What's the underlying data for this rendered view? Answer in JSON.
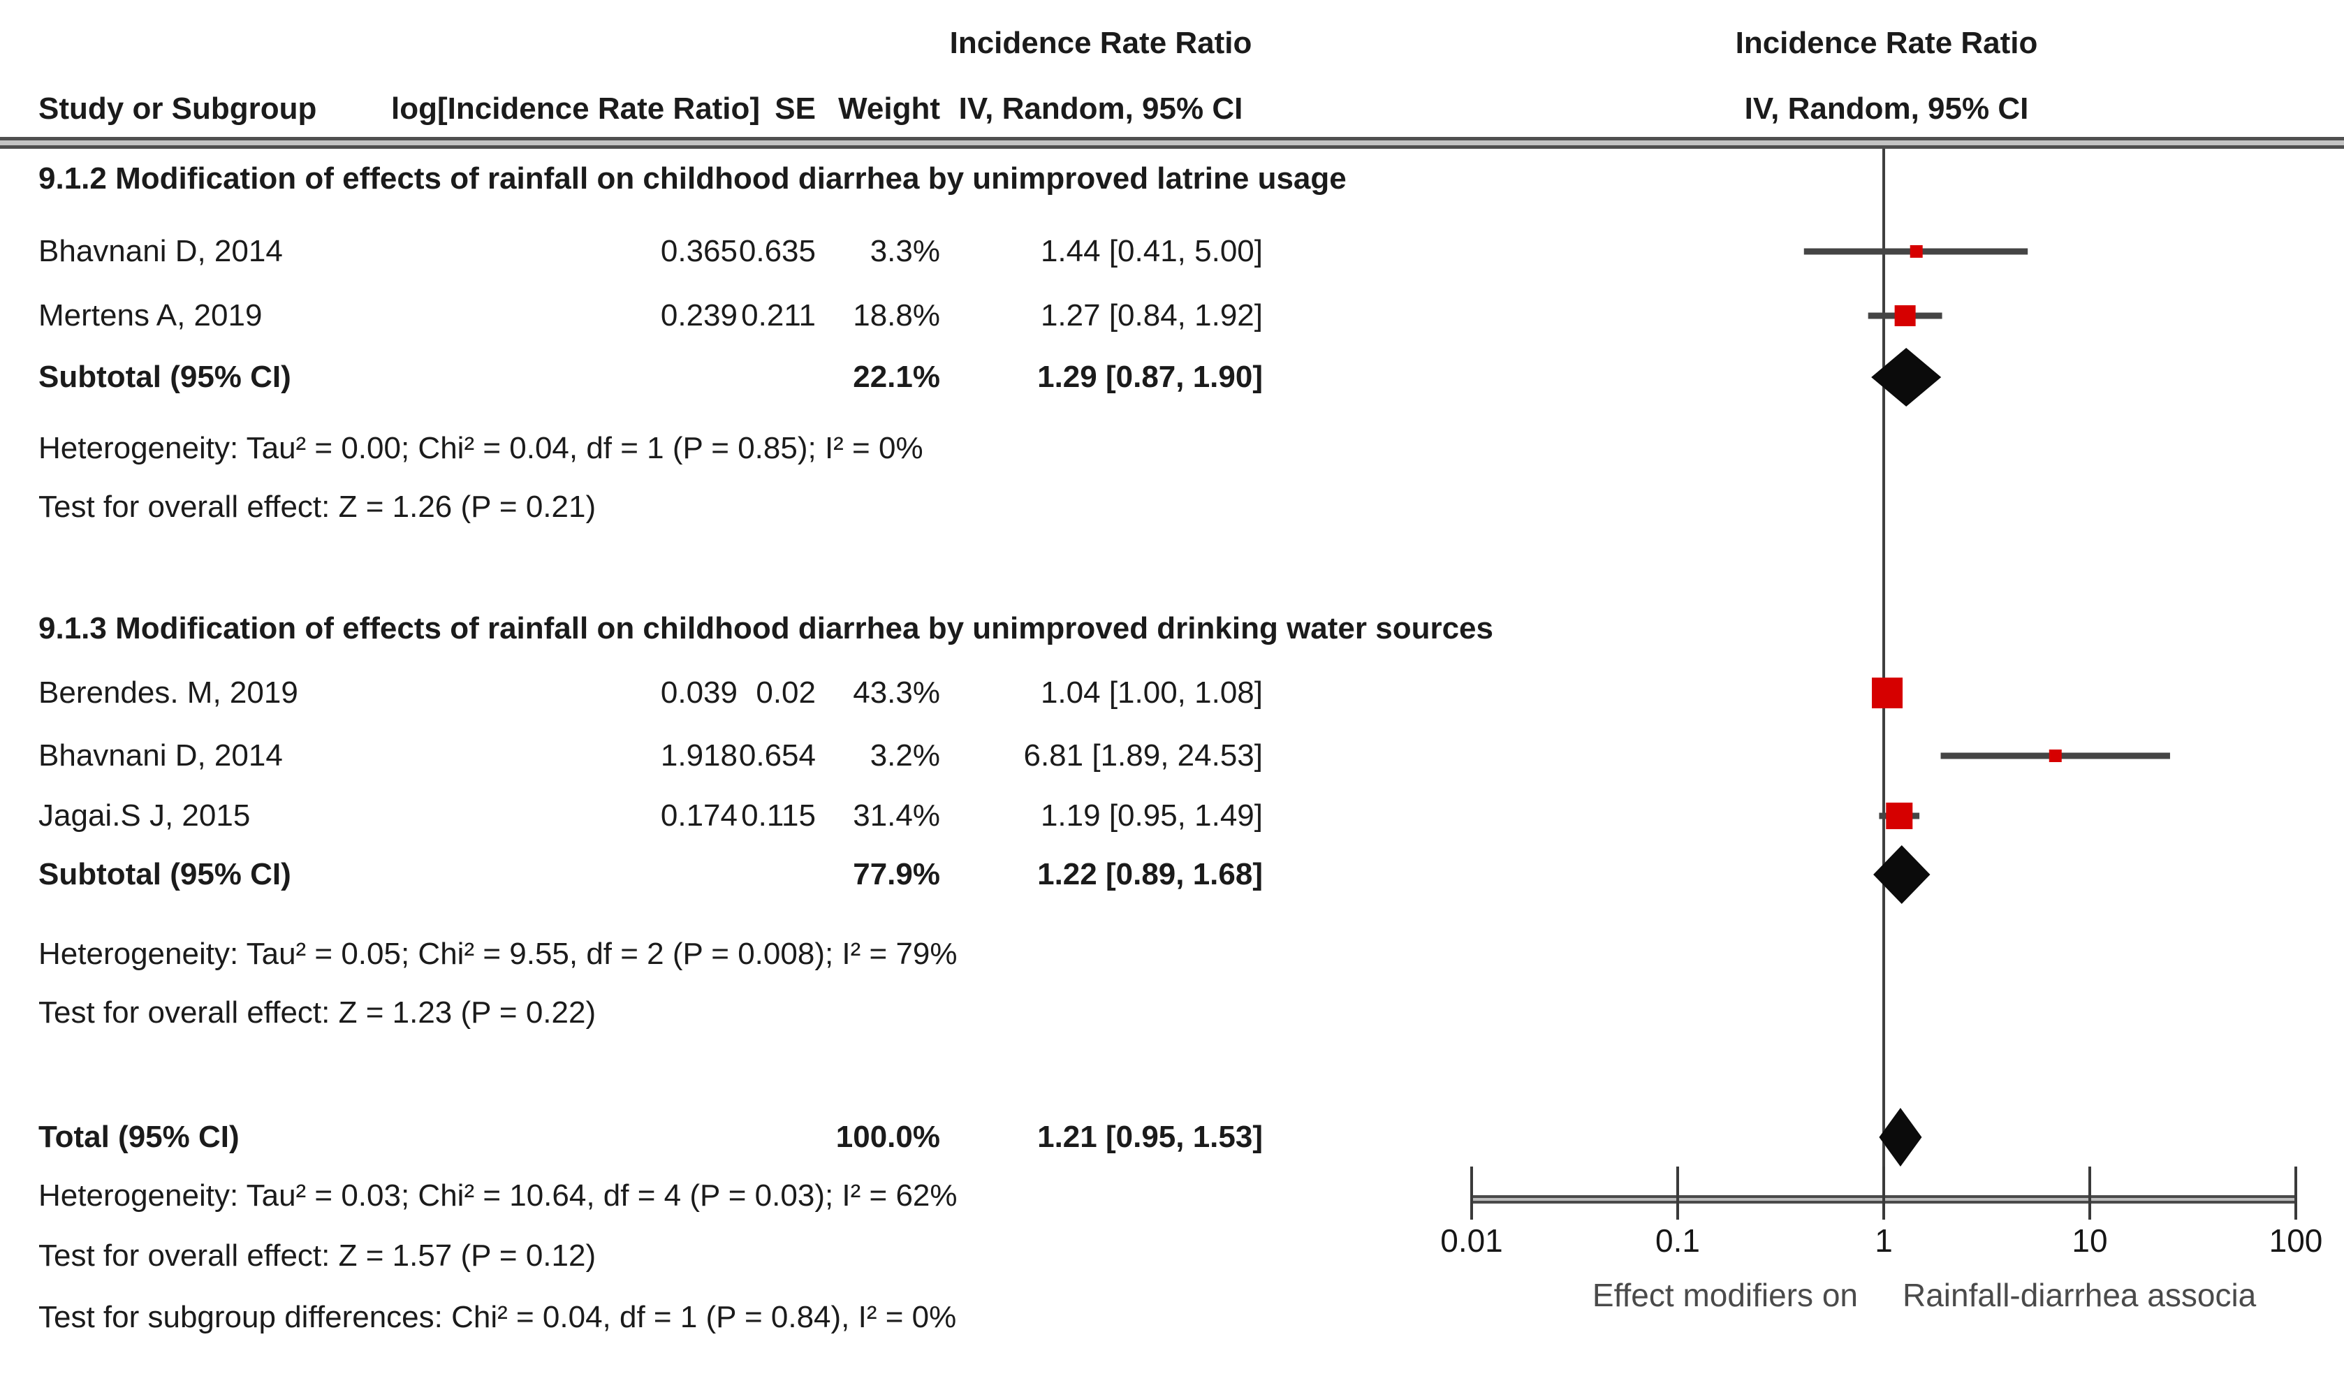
{
  "header": {
    "effect_title": "Incidence Rate Ratio",
    "effect_subtitle": "IV, Random, 95% CI",
    "plot_title": "Incidence Rate Ratio",
    "plot_subtitle": "IV, Random, 95% CI",
    "columns": {
      "study": "Study or Subgroup",
      "log": "log[Incidence Rate Ratio]",
      "se": "SE",
      "weight": "Weight",
      "ci": "IV, Random, 95% CI"
    }
  },
  "subgroup1": {
    "title": "9.1.2 Modification of effects of rainfall on childhood diarrhea by unimproved latrine usage",
    "rows": [
      {
        "name": "Bhavnani D, 2014",
        "log": "0.365",
        "se": "0.635",
        "weight": "3.3%",
        "ci": "1.44 [0.41, 5.00]"
      },
      {
        "name": "Mertens A, 2019",
        "log": "0.239",
        "se": "0.211",
        "weight": "18.8%",
        "ci": "1.27 [0.84, 1.92]"
      }
    ],
    "subtotal": {
      "name": "Subtotal (95% CI)",
      "weight": "22.1%",
      "ci": "1.29 [0.87, 1.90]"
    },
    "heterogeneity": "Heterogeneity: Tau² = 0.00; Chi² = 0.04, df = 1 (P = 0.85); I² = 0%",
    "overall": "Test for overall effect: Z = 1.26 (P = 0.21)"
  },
  "subgroup2": {
    "title": "9.1.3 Modification of effects of rainfall on childhood diarrhea by unimproved drinking water sources",
    "rows": [
      {
        "name": "Berendes. M, 2019",
        "log": "0.039",
        "se": "0.02",
        "weight": "43.3%",
        "ci": "1.04 [1.00, 1.08]"
      },
      {
        "name": "Bhavnani D, 2014",
        "log": "1.918",
        "se": "0.654",
        "weight": "3.2%",
        "ci": "6.81 [1.89, 24.53]"
      },
      {
        "name": "Jagai.S J, 2015",
        "log": "0.174",
        "se": "0.115",
        "weight": "31.4%",
        "ci": "1.19 [0.95, 1.49]"
      }
    ],
    "subtotal": {
      "name": "Subtotal (95% CI)",
      "weight": "77.9%",
      "ci": "1.22 [0.89, 1.68]"
    },
    "heterogeneity": "Heterogeneity: Tau² = 0.05; Chi² = 9.55, df = 2 (P = 0.008); I² = 79%",
    "overall": "Test for overall effect: Z = 1.23 (P = 0.22)"
  },
  "total": {
    "name": "Total (95% CI)",
    "weight": "100.0%",
    "ci": "1.21 [0.95, 1.53]",
    "heterogeneity": "Heterogeneity: Tau² = 0.03; Chi² = 10.64, df = 4 (P = 0.03); I² = 62%",
    "overall": "Test for overall effect: Z = 1.57 (P = 0.12)",
    "subgroup_diff": "Test for subgroup differences: Chi² = 0.04, df = 1 (P = 0.84), I² = 0%"
  },
  "chart_data": {
    "type": "forest",
    "scale": "log10",
    "x_min": 0.01,
    "x_max": 100,
    "null_value": 1,
    "axis_ticks": [
      0.01,
      0.1,
      1,
      10,
      100
    ],
    "axis_labels": {
      "left": "Effect modifiers on",
      "right": "Rainfall-diarrhea associa"
    },
    "studies": [
      {
        "name": "Bhavnani D, 2014",
        "subgroup": "9.1.2",
        "estimate": 1.44,
        "ci_low": 0.41,
        "ci_high": 5.0,
        "weight_pct": 3.3
      },
      {
        "name": "Mertens A, 2019",
        "subgroup": "9.1.2",
        "estimate": 1.27,
        "ci_low": 0.84,
        "ci_high": 1.92,
        "weight_pct": 18.8
      },
      {
        "name": "Berendes. M, 2019",
        "subgroup": "9.1.3",
        "estimate": 1.04,
        "ci_low": 1.0,
        "ci_high": 1.08,
        "weight_pct": 43.3
      },
      {
        "name": "Bhavnani D, 2014",
        "subgroup": "9.1.3",
        "estimate": 6.81,
        "ci_low": 1.89,
        "ci_high": 24.53,
        "weight_pct": 3.2
      },
      {
        "name": "Jagai.S J, 2015",
        "subgroup": "9.1.3",
        "estimate": 1.19,
        "ci_low": 0.95,
        "ci_high": 1.49,
        "weight_pct": 31.4
      }
    ],
    "diamonds": [
      {
        "label": "Subtotal 9.1.2",
        "estimate": 1.29,
        "ci_low": 0.87,
        "ci_high": 1.9
      },
      {
        "label": "Subtotal 9.1.3",
        "estimate": 1.22,
        "ci_low": 0.89,
        "ci_high": 1.68
      },
      {
        "label": "Total",
        "estimate": 1.21,
        "ci_low": 0.95,
        "ci_high": 1.53
      }
    ],
    "colors": {
      "square": "#d60000",
      "diamond": "#0b0b0b",
      "ci_line": "#454545",
      "axis_label": "#4a4a4a"
    }
  }
}
